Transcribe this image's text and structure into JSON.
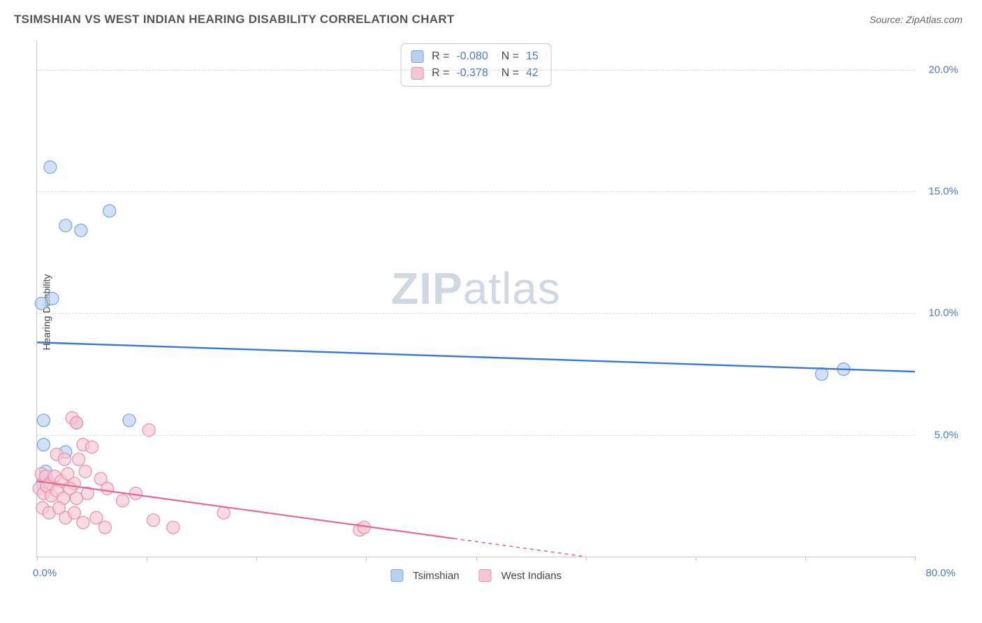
{
  "header": {
    "title": "TSIMSHIAN VS WEST INDIAN HEARING DISABILITY CORRELATION CHART",
    "source": "Source: ZipAtlas.com"
  },
  "chart": {
    "type": "scatter",
    "ylabel": "Hearing Disability",
    "watermark_bold": "ZIP",
    "watermark_light": "atlas",
    "xlim": [
      0,
      80
    ],
    "ylim": [
      0,
      21.2
    ],
    "xtick_step": 10,
    "x_labels": [
      {
        "v": 0,
        "t": "0.0%"
      },
      {
        "v": 80,
        "t": "80.0%"
      }
    ],
    "y_labels": [
      {
        "v": 5,
        "t": "5.0%"
      },
      {
        "v": 10,
        "t": "10.0%"
      },
      {
        "v": 15,
        "t": "15.0%"
      },
      {
        "v": 20,
        "t": "20.0%"
      }
    ],
    "grid_color": "#dcdcdc",
    "axis_color": "#c9c9c9",
    "series": [
      {
        "name": "Tsimshian",
        "color_fill": "#b9d0f0",
        "color_stroke": "#7aa6e0",
        "line_color": "#3b78d6",
        "stats": {
          "R": "-0.080",
          "N": "15"
        },
        "marker_r": 9,
        "trend": {
          "x1": 0,
          "y1": 8.8,
          "x2": 80,
          "y2": 7.6,
          "dash_from_x": null
        },
        "points": [
          {
            "x": 1.2,
            "y": 16.0
          },
          {
            "x": 2.6,
            "y": 13.6
          },
          {
            "x": 4.0,
            "y": 13.4
          },
          {
            "x": 6.6,
            "y": 14.2
          },
          {
            "x": 0.4,
            "y": 10.4
          },
          {
            "x": 1.4,
            "y": 10.6
          },
          {
            "x": 0.6,
            "y": 5.6
          },
          {
            "x": 3.6,
            "y": 5.5
          },
          {
            "x": 8.4,
            "y": 5.6
          },
          {
            "x": 0.6,
            "y": 4.6
          },
          {
            "x": 2.6,
            "y": 4.3
          },
          {
            "x": 0.8,
            "y": 3.5
          },
          {
            "x": 0.5,
            "y": 3.0
          },
          {
            "x": 71.5,
            "y": 7.5
          },
          {
            "x": 73.5,
            "y": 7.7
          }
        ]
      },
      {
        "name": "West Indians",
        "color_fill": "#f6c6d4",
        "color_stroke": "#e98fa9",
        "line_color": "#e36b8f",
        "stats": {
          "R": "-0.378",
          "N": "42"
        },
        "marker_r": 9,
        "trend": {
          "x1": 0,
          "y1": 3.1,
          "x2": 50,
          "y2": 0,
          "dash_from_x": 38
        },
        "points": [
          {
            "x": 3.2,
            "y": 5.7
          },
          {
            "x": 3.6,
            "y": 5.5
          },
          {
            "x": 4.2,
            "y": 4.6
          },
          {
            "x": 10.2,
            "y": 5.2
          },
          {
            "x": 1.8,
            "y": 4.2
          },
          {
            "x": 2.5,
            "y": 4.0
          },
          {
            "x": 3.8,
            "y": 4.0
          },
          {
            "x": 5.0,
            "y": 4.5
          },
          {
            "x": 0.4,
            "y": 3.4
          },
          {
            "x": 0.8,
            "y": 3.3
          },
          {
            "x": 1.2,
            "y": 3.0
          },
          {
            "x": 1.6,
            "y": 3.3
          },
          {
            "x": 2.2,
            "y": 3.1
          },
          {
            "x": 2.8,
            "y": 3.4
          },
          {
            "x": 3.4,
            "y": 3.0
          },
          {
            "x": 4.4,
            "y": 3.5
          },
          {
            "x": 5.8,
            "y": 3.2
          },
          {
            "x": 0.2,
            "y": 2.8
          },
          {
            "x": 0.6,
            "y": 2.6
          },
          {
            "x": 0.9,
            "y": 2.9
          },
          {
            "x": 1.3,
            "y": 2.5
          },
          {
            "x": 1.8,
            "y": 2.7
          },
          {
            "x": 2.4,
            "y": 2.4
          },
          {
            "x": 3.0,
            "y": 2.8
          },
          {
            "x": 3.6,
            "y": 2.4
          },
          {
            "x": 4.6,
            "y": 2.6
          },
          {
            "x": 6.4,
            "y": 2.8
          },
          {
            "x": 0.5,
            "y": 2.0
          },
          {
            "x": 1.1,
            "y": 1.8
          },
          {
            "x": 2.0,
            "y": 2.0
          },
          {
            "x": 2.6,
            "y": 1.6
          },
          {
            "x": 3.4,
            "y": 1.8
          },
          {
            "x": 4.2,
            "y": 1.4
          },
          {
            "x": 5.4,
            "y": 1.6
          },
          {
            "x": 7.8,
            "y": 2.3
          },
          {
            "x": 9.0,
            "y": 2.6
          },
          {
            "x": 10.6,
            "y": 1.5
          },
          {
            "x": 12.4,
            "y": 1.2
          },
          {
            "x": 17.0,
            "y": 1.8
          },
          {
            "x": 29.4,
            "y": 1.1
          },
          {
            "x": 29.8,
            "y": 1.2
          },
          {
            "x": 6.2,
            "y": 1.2
          }
        ]
      }
    ],
    "bottom_legend": [
      {
        "label": "Tsimshian",
        "fill": "#b9d0f0",
        "stroke": "#7aa6e0"
      },
      {
        "label": "West Indians",
        "fill": "#f6c6d4",
        "stroke": "#e98fa9"
      }
    ]
  }
}
